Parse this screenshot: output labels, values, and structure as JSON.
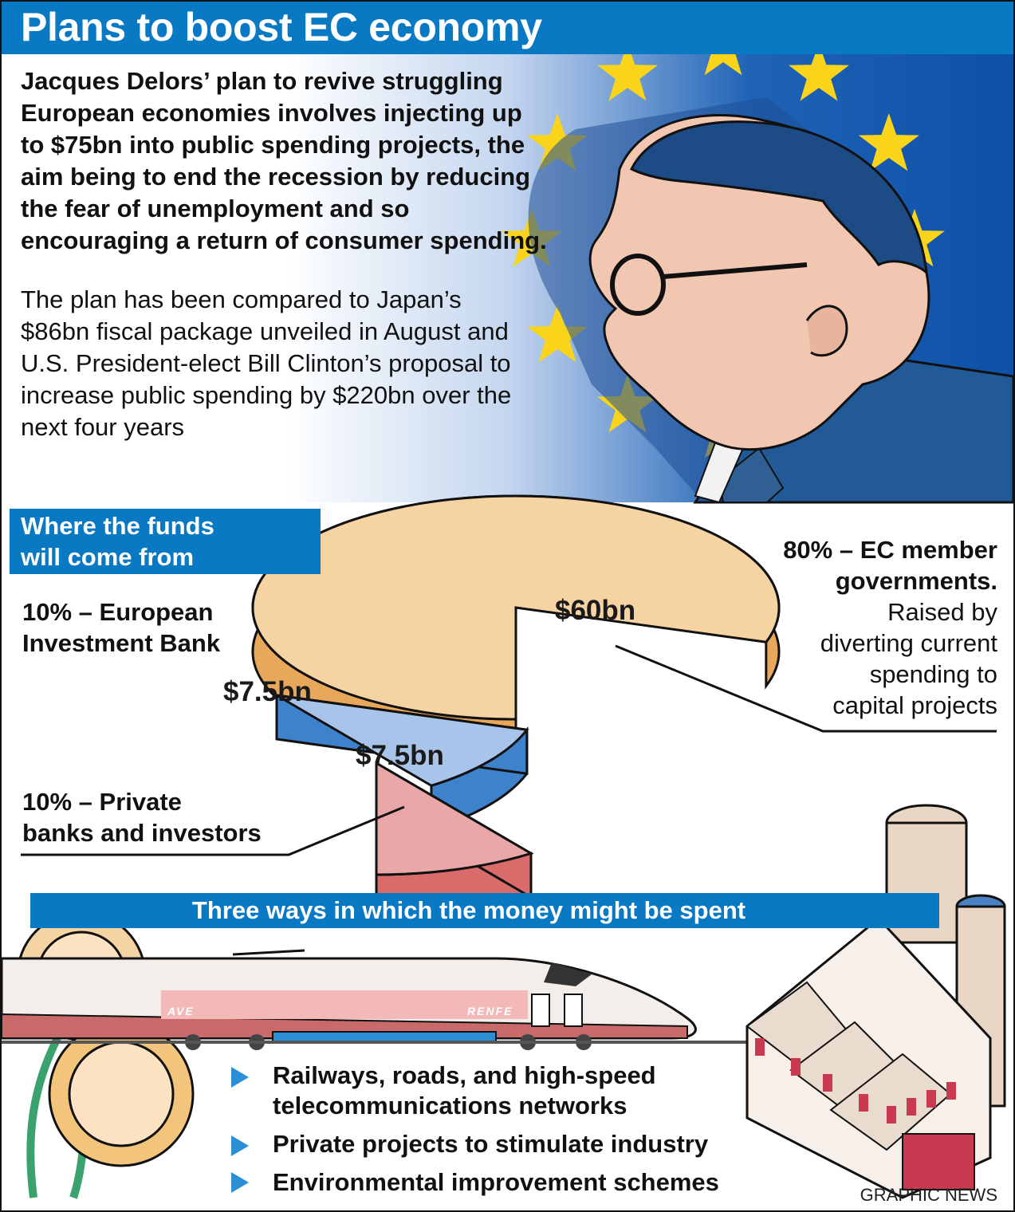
{
  "title": "Plans to boost EC economy",
  "intro": {
    "bold": "Jacques Delors’ plan to revive struggling European economies involves injecting up to $75bn into public spending projects, the aim being to end the recession by reducing the fear of unemployment and so encouraging a return of consumer spending.",
    "body": "The plan has been compared to Japan’s $86bn fiscal package unveiled in August and U.S. President-elect Bill Clinton’s proposal to increase public spending by $220bn over the next four years"
  },
  "funds_heading_line1": "Where the funds",
  "funds_heading_line2": "will come from",
  "chart_data": {
    "type": "pie",
    "slices": [
      {
        "label": "EC member governments",
        "percent": 80,
        "value_label": "$60bn",
        "color": "#f6d3a3"
      },
      {
        "label": "European Investment Bank",
        "percent": 10,
        "value_label": "$7.5bn",
        "color": "#a9c4ea"
      },
      {
        "label": "Private banks and investors",
        "percent": 10,
        "value_label": "$7.5bn",
        "color": "#e9a7a7"
      }
    ]
  },
  "annotations": {
    "ec": {
      "line1": "80% – EC member",
      "line2": "governments.",
      "detail": [
        "Raised by",
        "diverting current",
        "spending to",
        "capital projects"
      ]
    },
    "eib": {
      "line1": "10% – European",
      "line2": "Investment Bank"
    },
    "private": {
      "line1": "10% – Private",
      "line2": "banks and investors"
    }
  },
  "ways_heading": "Three ways in which the money might be spent",
  "ways": [
    "Railways, roads, and high-speed telecommunications networks",
    "Private projects to stimulate industry",
    "Environmental improvement schemes"
  ],
  "train_text": {
    "left": "AVE",
    "right": "RENFE"
  },
  "credit": "GRAPHIC NEWS",
  "colors": {
    "accent_blue": "#0a79c4",
    "stars": "#f9d41a"
  }
}
